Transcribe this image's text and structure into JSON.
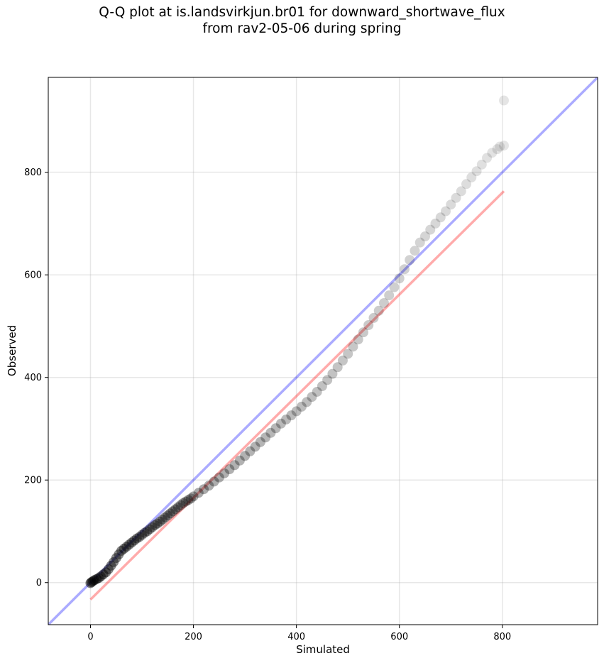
{
  "chart_data": {
    "type": "scatter",
    "title_lines": [
      "Q-Q plot at is.landsvirkjun.br01 for downward_shortwave_flux",
      "from rav2-05-06 during spring"
    ],
    "xlabel": "Simulated",
    "ylabel": "Observed",
    "xlim": [
      -82,
      985
    ],
    "ylim": [
      -82,
      985
    ],
    "xticks": [
      0,
      200,
      400,
      600,
      800
    ],
    "yticks": [
      0,
      200,
      400,
      600,
      800
    ],
    "grid": true,
    "reference_line": {
      "name": "1:1",
      "color": "#0000ff",
      "opacity": 0.33,
      "from": [
        -82,
        -82
      ],
      "to": [
        985,
        985
      ]
    },
    "fit_line": {
      "name": "fit",
      "color": "#ff0000",
      "opacity": 0.33,
      "from": [
        0,
        -33
      ],
      "to": [
        803,
        763
      ]
    },
    "points": {
      "x": [
        0,
        2,
        5,
        8,
        12,
        16,
        20,
        25,
        30,
        35,
        40,
        45,
        50,
        55,
        60,
        65,
        70,
        75,
        80,
        85,
        90,
        95,
        100,
        105,
        110,
        115,
        120,
        125,
        130,
        135,
        140,
        145,
        150,
        155,
        160,
        165,
        170,
        175,
        180,
        185,
        190,
        195,
        200,
        210,
        220,
        230,
        240,
        250,
        260,
        270,
        280,
        290,
        300,
        310,
        320,
        330,
        340,
        350,
        360,
        370,
        380,
        390,
        400,
        410,
        420,
        430,
        440,
        450,
        460,
        470,
        480,
        490,
        500,
        510,
        520,
        530,
        540,
        550,
        560,
        570,
        580,
        590,
        600,
        610,
        620,
        630,
        640,
        650,
        660,
        670,
        680,
        690,
        700,
        710,
        720,
        730,
        740,
        750,
        760,
        770,
        780,
        790,
        795,
        803,
        803
      ],
      "y": [
        -1,
        1,
        3,
        5,
        7,
        9,
        12,
        16,
        20,
        26,
        33,
        40,
        48,
        55,
        62,
        66,
        70,
        74,
        78,
        82,
        86,
        89,
        93,
        97,
        100,
        104,
        108,
        112,
        115,
        119,
        123,
        127,
        131,
        135,
        139,
        143,
        147,
        151,
        155,
        158,
        161,
        164,
        168,
        175,
        182,
        189,
        197,
        205,
        213,
        221,
        229,
        238,
        247,
        256,
        265,
        274,
        283,
        292,
        301,
        310,
        318,
        326,
        334,
        343,
        352,
        362,
        372,
        383,
        395,
        407,
        420,
        433,
        446,
        460,
        474,
        488,
        502,
        516,
        530,
        545,
        560,
        576,
        593,
        611,
        629,
        647,
        663,
        675,
        688,
        700,
        712,
        724,
        737,
        750,
        763,
        777,
        790,
        802,
        815,
        828,
        838,
        845,
        850,
        852,
        940
      ]
    }
  }
}
